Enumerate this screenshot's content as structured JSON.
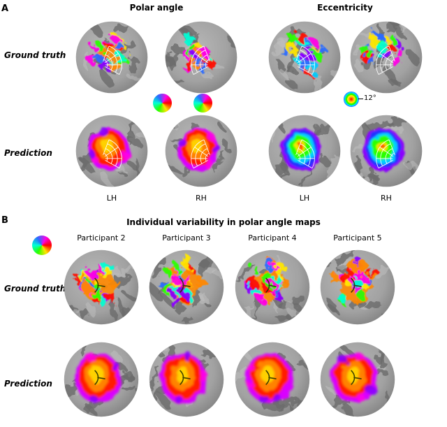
{
  "panel_a": {
    "label": "A",
    "column_titles": [
      "Polar angle",
      "Eccentricity"
    ],
    "row_labels": [
      "Ground truth",
      "Prediction"
    ],
    "hemisphere_labels": [
      "LH",
      "RH",
      "LH",
      "RH"
    ],
    "eccentricity_scale_label": "12°"
  },
  "panel_b": {
    "label": "B",
    "title": "Individual variability in polar angle maps",
    "participant_titles": [
      "Participant 2",
      "Participant 3",
      "Participant 4",
      "Participant 5"
    ],
    "row_labels": [
      "Ground truth",
      "Prediction"
    ]
  },
  "colors": {
    "polar_palette": [
      "#ff0000",
      "#ffe600",
      "#2aff00",
      "#00ffd5",
      "#2b6bff",
      "#ff00e6"
    ],
    "eccentricity_palette": [
      "#ff2a00",
      "#ff9900",
      "#ffe600",
      "#2aff00",
      "#00cfff",
      "#2b3bff",
      "#cc00ff"
    ],
    "surface_gray": "#a2a2a2",
    "sulci_gray": "#6b6b6b"
  }
}
